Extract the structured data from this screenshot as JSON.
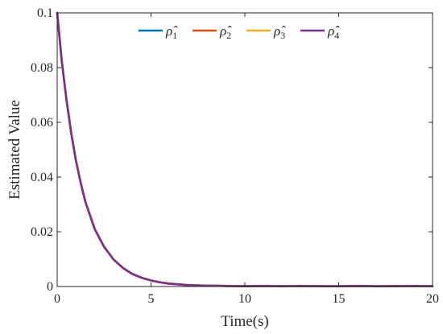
{
  "chart_data": {
    "type": "line",
    "title": "",
    "xlabel": "Time(s)",
    "ylabel": "Estimated Value",
    "xlim": [
      0,
      20
    ],
    "ylim": [
      0,
      0.1
    ],
    "xticks": [
      0,
      5,
      10,
      15,
      20
    ],
    "xtick_labels": [
      "0",
      "5",
      "10",
      "15",
      "20"
    ],
    "yticks": [
      0,
      0.02,
      0.04,
      0.06,
      0.08,
      0.1
    ],
    "ytick_labels": [
      "0",
      "0.02",
      "0.04",
      "0.06",
      "0.08",
      "0.1"
    ],
    "grid": false,
    "legend_position": "top",
    "x": [
      0,
      0.25,
      0.5,
      0.75,
      1,
      1.25,
      1.5,
      1.75,
      2,
      2.5,
      3,
      3.5,
      4,
      4.5,
      5,
      5.5,
      6,
      6.5,
      7,
      8,
      9,
      10,
      11,
      12,
      13,
      14,
      15,
      16,
      17,
      18,
      19,
      20
    ],
    "series": [
      {
        "name": "ρ̂1",
        "color": "#0072BD",
        "values": [
          0.1,
          0.082,
          0.068,
          0.056,
          0.046,
          0.038,
          0.031,
          0.026,
          0.021,
          0.0145,
          0.0099,
          0.0068,
          0.0046,
          0.0032,
          0.0022,
          0.0015,
          0.001,
          0.0007,
          0.0005,
          0.0003,
          0.0002,
          0.0001,
          0.0002,
          0.0001,
          0.0002,
          0.0001,
          0.0001,
          0.0002,
          0.0001,
          0.0001,
          0.0002,
          0.0001
        ]
      },
      {
        "name": "ρ̂2",
        "color": "#D95319",
        "values": [
          0.1,
          0.082,
          0.068,
          0.056,
          0.046,
          0.038,
          0.031,
          0.026,
          0.021,
          0.0145,
          0.0099,
          0.0068,
          0.0046,
          0.0032,
          0.0022,
          0.0015,
          0.0011,
          0.0008,
          0.0005,
          0.0003,
          0.0002,
          0.0001,
          0.0002,
          0.0001,
          0.0002,
          0.0001,
          0.0001,
          0.0002,
          0.0001,
          0.0002,
          0.0002,
          0.0001
        ]
      },
      {
        "name": "ρ̂3",
        "color": "#EDB120",
        "values": [
          0.1,
          0.082,
          0.068,
          0.056,
          0.046,
          0.038,
          0.031,
          0.026,
          0.021,
          0.0145,
          0.0099,
          0.0068,
          0.0046,
          0.0032,
          0.0022,
          0.0015,
          0.001,
          0.0008,
          0.0005,
          0.0003,
          0.0002,
          0.0001,
          0.0001,
          0.0001,
          0.0002,
          0.0001,
          0.0001,
          0.0001,
          0.0001,
          0.0001,
          0.0002,
          0.0001
        ]
      },
      {
        "name": "ρ̂4",
        "color": "#7E2F8E",
        "values": [
          0.1,
          0.082,
          0.068,
          0.056,
          0.046,
          0.038,
          0.031,
          0.026,
          0.021,
          0.0145,
          0.0099,
          0.0068,
          0.0046,
          0.0032,
          0.0022,
          0.0015,
          0.001,
          0.0008,
          0.0005,
          0.0003,
          0.0002,
          0.0001,
          0.0002,
          0.0001,
          0.0002,
          0.0001,
          0.0001,
          0.0002,
          0.0001,
          0.0001,
          0.0002,
          0.0001
        ]
      }
    ]
  }
}
